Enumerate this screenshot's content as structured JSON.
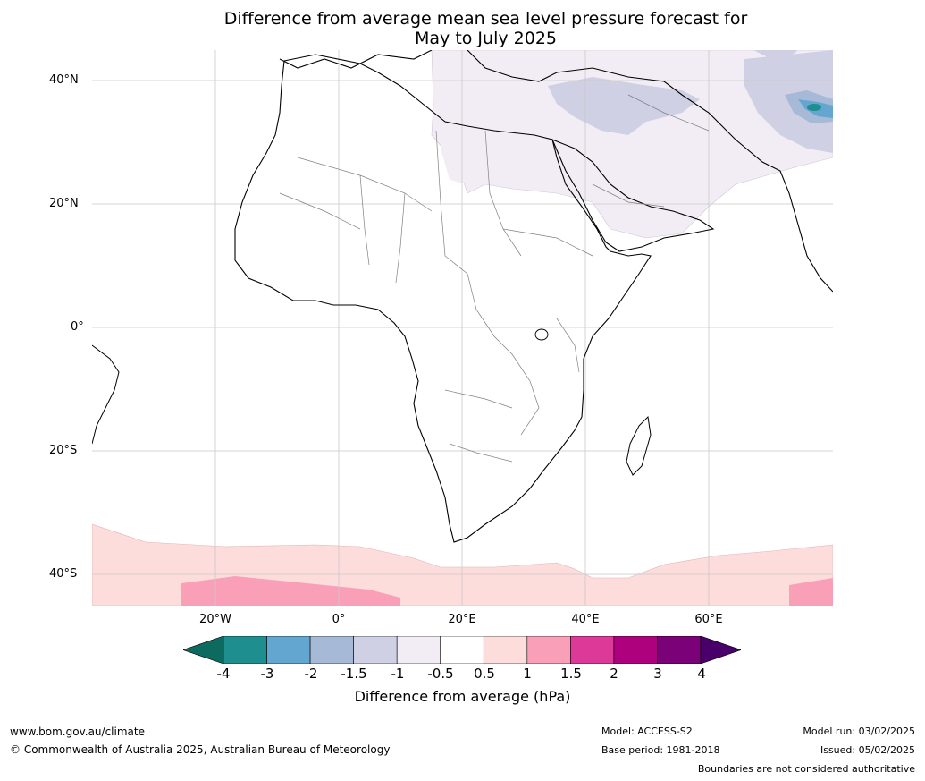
{
  "title": {
    "line1": "Difference from average mean sea level pressure forecast for",
    "line2": "May to July 2025"
  },
  "map": {
    "lat_labels": [
      "40°N",
      "20°N",
      "0°",
      "20°S",
      "40°S"
    ],
    "lon_labels": [
      "20°W",
      "0°",
      "20°E",
      "40°E",
      "60°E"
    ],
    "grid": true
  },
  "colorbar": {
    "label": "Difference from average (hPa)",
    "ticks": [
      "-4",
      "-3",
      "-2",
      "-1.5",
      "-1",
      "-0.5",
      "0.5",
      "1",
      "1.5",
      "2",
      "3",
      "4"
    ],
    "colors": [
      "#1f8e8f",
      "#63a6d0",
      "#a6b9d6",
      "#cfd0e4",
      "#f2edf4",
      "#ffffff",
      "#fddcdc",
      "#f9a0b8",
      "#dc3998",
      "#ae017e",
      "#7a0177"
    ],
    "under_color": "#0c6a5e",
    "over_color": "#49006a"
  },
  "footer": {
    "website": "www.bom.gov.au/climate",
    "copyright": "© Commonwealth of Australia 2025, Australian Bureau of Meteorology",
    "model": "Model: ACCESS-S2",
    "base_period": "Base period: 1981-2018",
    "model_run": "Model run: 03/02/2025",
    "issued": "Issued: 05/02/2025",
    "disclaimer": "Boundaries are not considered authoritative"
  }
}
